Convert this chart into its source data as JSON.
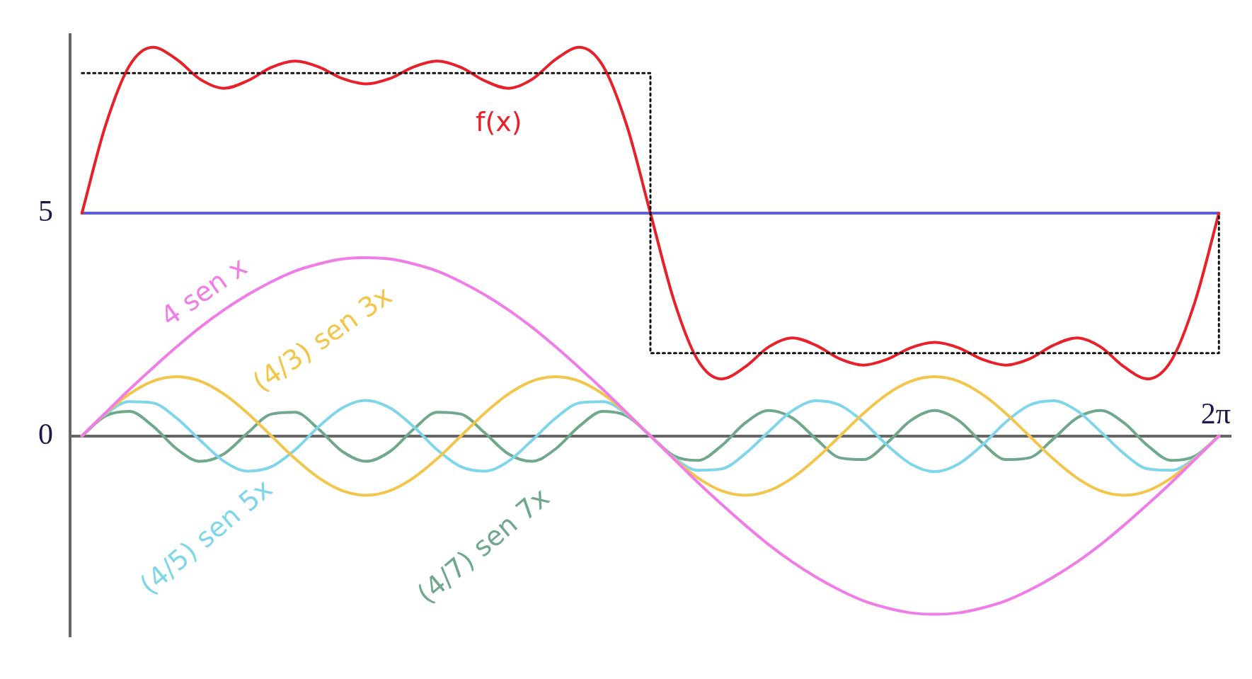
{
  "chart_data": {
    "type": "line",
    "categories": [
      null,
      null,
      null,
      null,
      null,
      null,
      null,
      null,
      null,
      null,
      null,
      null,
      null,
      null,
      null,
      null,
      null,
      null,
      null,
      null,
      null,
      null,
      null,
      null,
      null,
      null,
      null,
      null,
      null,
      null,
      null,
      null,
      null,
      null,
      null,
      null,
      null,
      null,
      null,
      null,
      null,
      null,
      null,
      null,
      null,
      null,
      null,
      null,
      null
    ],
    "series": [
      {
        "type": "step",
        "color": "#111111",
        "line_style": "dotted",
        "values": [
          8.14,
          8.14,
          8.14,
          8.14,
          8.14,
          8.14,
          8.14,
          8.14,
          8.14,
          8.14,
          8.14,
          8.14,
          8.14,
          8.14,
          8.14,
          8.14,
          8.14,
          8.14,
          8.14,
          8.14,
          8.14,
          8.14,
          8.14,
          8.14,
          1.86,
          1.86,
          1.86,
          1.86,
          1.86,
          1.86,
          1.86,
          1.86,
          1.86,
          1.86,
          1.86,
          1.86,
          1.86,
          1.86,
          1.86,
          1.86,
          1.86,
          1.86,
          1.86,
          1.86,
          1.86,
          1.86,
          1.86,
          1.86,
          5
        ]
      },
      {
        "name": "4 sen x",
        "color": "#f07ce8",
        "values": [
          0,
          0.52,
          1.04,
          1.53,
          2,
          2.44,
          2.83,
          3.17,
          3.46,
          3.7,
          3.86,
          3.97,
          4,
          3.97,
          3.86,
          3.7,
          3.46,
          3.17,
          2.83,
          2.44,
          2,
          1.53,
          1.04,
          0.52,
          0,
          -0.52,
          -1.04,
          -1.53,
          -2,
          -2.44,
          -2.83,
          -3.17,
          -3.46,
          -3.7,
          -3.86,
          -3.97,
          -4,
          -3.97,
          -3.86,
          -3.7,
          -3.46,
          -3.17,
          -2.83,
          -2.44,
          -2,
          -1.53,
          -1.04,
          -0.52,
          0
        ]
      },
      {
        "name": "(4/3) sen 3x",
        "color": "#f2c64a",
        "values": [
          0,
          0.51,
          0.94,
          1.23,
          1.33,
          1.23,
          0.94,
          0.51,
          0,
          -0.51,
          -0.94,
          -1.23,
          -1.33,
          -1.23,
          -0.94,
          -0.51,
          0,
          0.51,
          0.94,
          1.23,
          1.33,
          1.23,
          0.94,
          0.51,
          0,
          -0.51,
          -0.94,
          -1.23,
          -1.33,
          -1.23,
          -0.94,
          -0.51,
          0,
          0.51,
          0.94,
          1.23,
          1.33,
          1.23,
          0.94,
          0.51,
          0,
          -0.51,
          -0.94,
          -1.23,
          -1.33,
          -1.23,
          -0.94,
          -0.51,
          0
        ]
      },
      {
        "name": "(4/5) sen 5x",
        "color": "#7fd6ea",
        "values": [
          0,
          0.49,
          0.77,
          0.74,
          0.4,
          -0.1,
          -0.57,
          -0.79,
          -0.69,
          -0.31,
          0.21,
          0.63,
          0.8,
          0.63,
          0.21,
          -0.31,
          -0.69,
          -0.79,
          -0.57,
          -0.1,
          0.4,
          0.74,
          0.77,
          0.49,
          0,
          -0.49,
          -0.77,
          -0.74,
          -0.4,
          0.1,
          0.57,
          0.79,
          0.69,
          0.31,
          -0.21,
          -0.63,
          -0.8,
          -0.63,
          -0.21,
          0.31,
          0.69,
          0.79,
          0.57,
          0.1,
          -0.4,
          -0.74,
          -0.77,
          -0.49,
          0
        ]
      },
      {
        "name": "(4/7) sen 7x",
        "color": "#6fa88a",
        "values": [
          0,
          0.45,
          0.55,
          0.22,
          -0.29,
          -0.57,
          -0.4,
          0.07,
          0.49,
          0.53,
          0.15,
          -0.35,
          -0.57,
          -0.35,
          0.15,
          0.53,
          0.49,
          0.07,
          -0.4,
          -0.57,
          -0.29,
          0.22,
          0.55,
          0.45,
          0,
          -0.45,
          -0.55,
          -0.22,
          0.29,
          0.57,
          0.4,
          -0.07,
          -0.49,
          -0.53,
          -0.15,
          0.35,
          0.57,
          0.35,
          -0.15,
          -0.53,
          -0.49,
          -0.07,
          0.4,
          0.57,
          0.29,
          -0.22,
          -0.55,
          -0.45,
          0
        ]
      },
      {
        "name": "f(x)",
        "color": "#e8202a",
        "values": [
          5,
          6.97,
          8.3,
          8.72,
          8.45,
          8,
          7.8,
          7.97,
          8.27,
          8.41,
          8.28,
          8.02,
          7.9,
          8.02,
          8.28,
          8.41,
          8.27,
          7.97,
          7.8,
          8,
          8.45,
          8.72,
          8.3,
          6.97,
          5,
          3.03,
          1.7,
          1.28,
          1.55,
          2,
          2.2,
          2.03,
          1.73,
          1.59,
          1.72,
          1.98,
          2.1,
          1.98,
          1.72,
          1.59,
          1.73,
          2.03,
          2.2,
          2,
          1.55,
          1.28,
          1.7,
          3.03,
          5
        ]
      }
    ],
    "ref_lines": [
      {
        "axis": "y",
        "value": 5,
        "color": "#5b5bea"
      }
    ],
    "annotations": [
      "2π"
    ],
    "ylim": [
      -4.5,
      9
    ],
    "yticks": [
      0,
      5
    ],
    "tick_labels": "y",
    "marker": "none",
    "line_style": "solid",
    "grid": false,
    "legend": false
  }
}
